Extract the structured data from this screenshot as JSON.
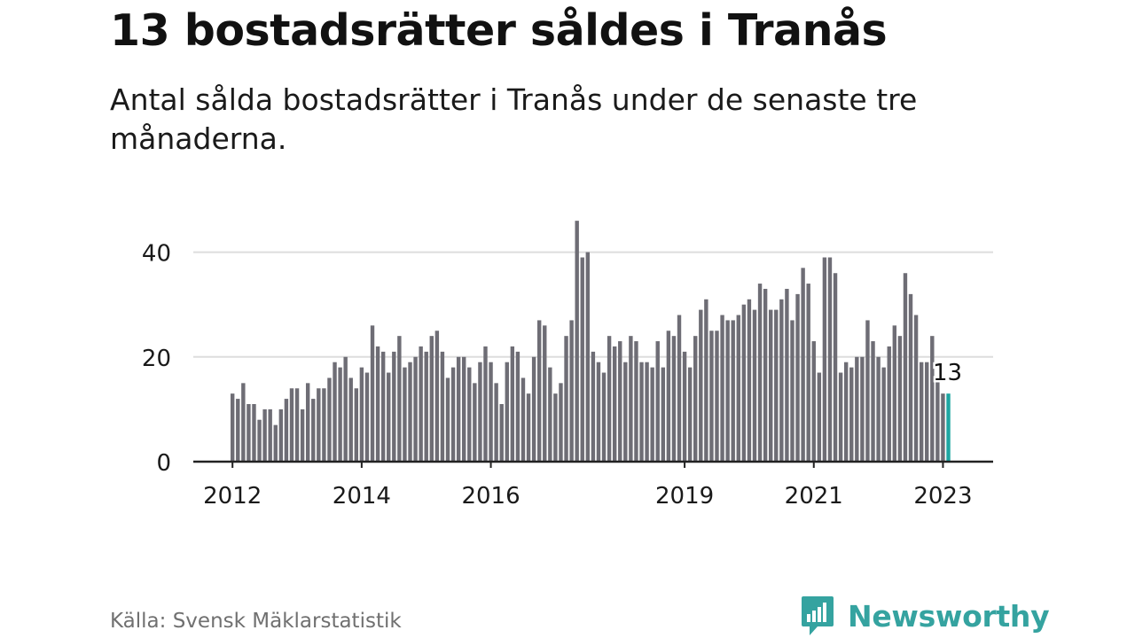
{
  "title": "13 bostadsrätter såldes i Tranås",
  "subtitle": "Antal sålda bostadsrätter i Tranås under de senaste tre månaderna.",
  "source": "Källa: Svensk Mäklarstatistik",
  "brand": {
    "name": "Newsworthy",
    "icon": "newsworthy-logo-icon"
  },
  "colors": {
    "bar": "#6e6d75",
    "highlight": "#1ea6a2",
    "grid": "#dddddd",
    "axis": "#222222",
    "text": "#1a1a1a"
  },
  "chart_data": {
    "type": "bar",
    "frequency": "monthly",
    "start": "2012-01",
    "end": "2023-02",
    "y_ticks": [
      "0",
      "20",
      "40"
    ],
    "ylim": [
      0,
      48
    ],
    "x_ticks": [
      {
        "label": "2012",
        "index": 0
      },
      {
        "label": "2014",
        "index": 24
      },
      {
        "label": "2016",
        "index": 48
      },
      {
        "label": "2019",
        "index": 84
      },
      {
        "label": "2021",
        "index": 108
      },
      {
        "label": "2023",
        "index": 132
      }
    ],
    "values": [
      13,
      12,
      15,
      11,
      11,
      8,
      10,
      10,
      7,
      10,
      12,
      14,
      14,
      10,
      15,
      12,
      14,
      14,
      16,
      19,
      18,
      20,
      16,
      14,
      18,
      17,
      26,
      22,
      21,
      17,
      21,
      24,
      18,
      19,
      20,
      22,
      21,
      24,
      25,
      21,
      16,
      18,
      20,
      20,
      18,
      15,
      19,
      22,
      19,
      15,
      11,
      19,
      22,
      21,
      16,
      13,
      20,
      27,
      26,
      18,
      13,
      15,
      24,
      27,
      46,
      39,
      40,
      21,
      19,
      17,
      24,
      22,
      23,
      19,
      24,
      23,
      19,
      19,
      18,
      23,
      18,
      25,
      24,
      28,
      21,
      18,
      24,
      29,
      31,
      25,
      25,
      28,
      27,
      27,
      28,
      30,
      31,
      29,
      34,
      33,
      29,
      29,
      31,
      33,
      27,
      32,
      37,
      34,
      23,
      17,
      39,
      39,
      36,
      17,
      19,
      18,
      20,
      20,
      27,
      23,
      20,
      18,
      22,
      26,
      24,
      36,
      32,
      28,
      19,
      19,
      24,
      16,
      13,
      13
    ],
    "highlight_index": 133,
    "annotation": "13"
  }
}
